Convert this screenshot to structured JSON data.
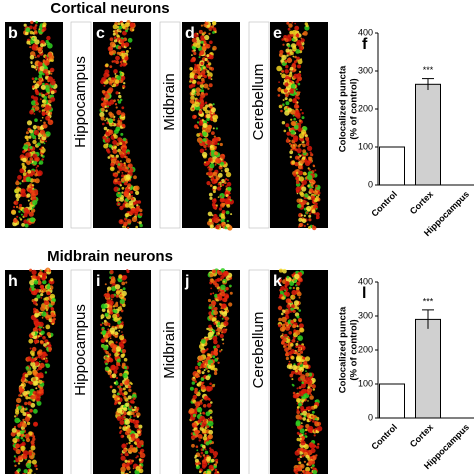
{
  "figure": {
    "sections": [
      {
        "title": "Cortical neurons",
        "panels": [
          {
            "letter": "b"
          },
          {
            "letter": "c",
            "region": "Hippocampus"
          },
          {
            "letter": "d",
            "region": "Midbrain"
          },
          {
            "letter": "e",
            "region": "Cerebellum"
          }
        ]
      },
      {
        "title": "Midbrain neurons",
        "panels": [
          {
            "letter": "h"
          },
          {
            "letter": "i",
            "region": "Hippocampus"
          },
          {
            "letter": "j",
            "region": "Midbrain"
          },
          {
            "letter": "k",
            "region": "Cerebellum"
          }
        ]
      }
    ]
  },
  "chart_data": [
    {
      "type": "bar",
      "panel": "f",
      "ylabel": [
        "Colocalized puncta",
        "(% of control)"
      ],
      "categories": [
        "Control",
        "Cortex",
        "Hippocampus"
      ],
      "values": [
        100,
        265,
        null
      ],
      "errors": [
        null,
        15,
        null
      ],
      "colors": [
        "#ffffff",
        "#d0d0d0",
        "#d0d0d0"
      ],
      "annotation": "***",
      "ylim": [
        0,
        400
      ],
      "yticks": [
        0,
        100,
        200,
        300,
        400
      ]
    },
    {
      "type": "bar",
      "panel": "l",
      "ylabel": [
        "Colocalized puncta",
        "(% of control)"
      ],
      "categories": [
        "Control",
        "Cortex",
        "Hippocampus"
      ],
      "values": [
        100,
        290,
        null
      ],
      "errors": [
        null,
        28,
        null
      ],
      "colors": [
        "#ffffff",
        "#d0d0d0",
        "#d0d0d0"
      ],
      "annotation": "***",
      "ylim": [
        0,
        400
      ],
      "yticks": [
        0,
        100,
        200,
        300,
        400
      ]
    }
  ]
}
